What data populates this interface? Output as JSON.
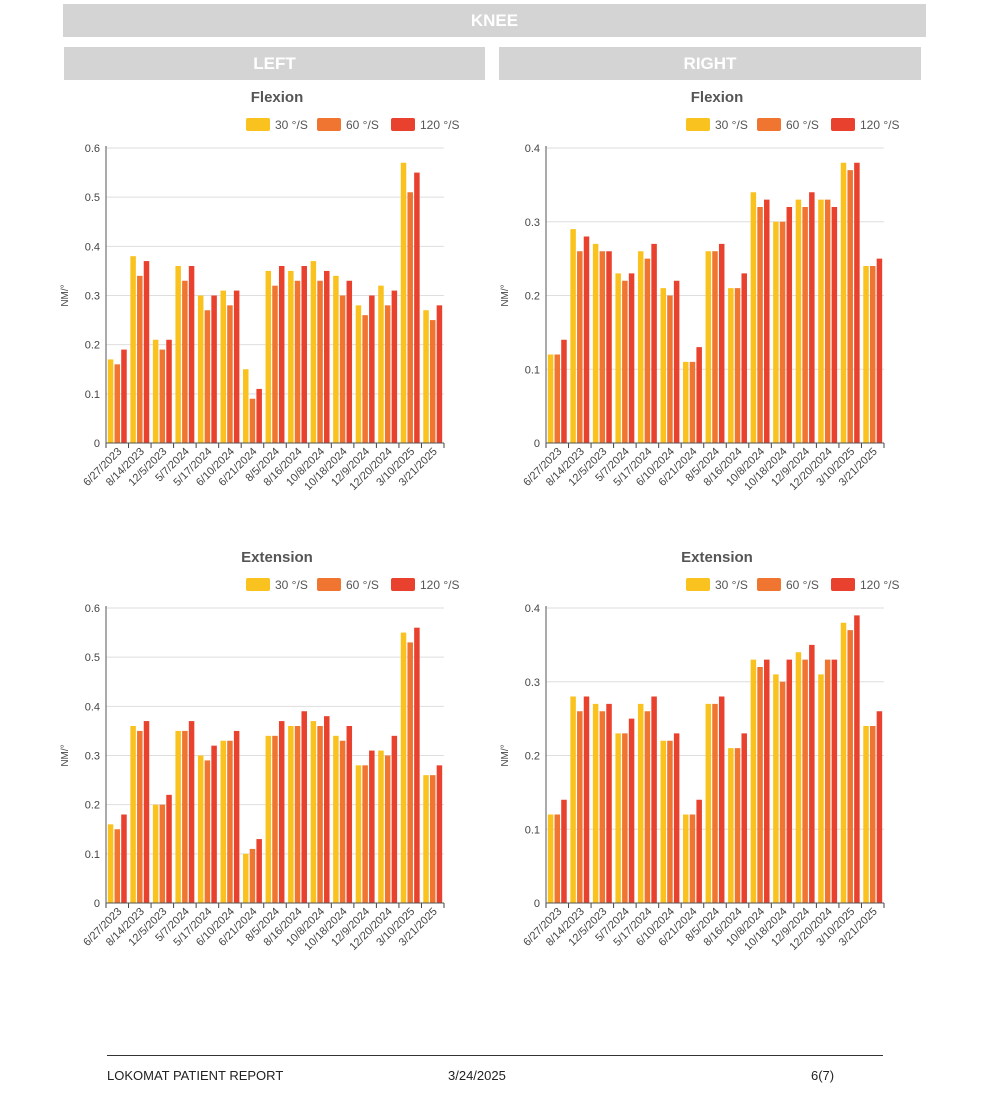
{
  "header": {
    "title": "KNEE",
    "left_label": "LEFT",
    "right_label": "RIGHT"
  },
  "legend_labels": [
    "30 °/S",
    "60 °/S",
    "120 °/S"
  ],
  "series_colors": [
    "#f9c21f",
    "#ef7530",
    "#e8412e"
  ],
  "chart_data": [
    {
      "type": "bar",
      "title": "Flexion",
      "ylabel": "NM/°",
      "ylim": [
        0,
        0.6
      ],
      "yticks": [
        "0",
        "0.1",
        "0.2",
        "0.3",
        "0.4",
        "0.5",
        "0.6"
      ],
      "categories": [
        "6/27/2023",
        "8/14/2023",
        "12/5/2023",
        "5/7/2024",
        "5/17/2024",
        "6/10/2024",
        "6/21/2024",
        "8/5/2024",
        "8/16/2024",
        "10/8/2024",
        "10/18/2024",
        "12/9/2024",
        "12/20/2024",
        "3/10/2025",
        "3/21/2025"
      ],
      "series": [
        {
          "name": "30 °/S",
          "values": [
            0.17,
            0.38,
            0.21,
            0.36,
            0.3,
            0.31,
            0.15,
            0.35,
            0.35,
            0.37,
            0.34,
            0.28,
            0.32,
            0.57,
            0.27
          ]
        },
        {
          "name": "60 °/S",
          "values": [
            0.16,
            0.34,
            0.19,
            0.33,
            0.27,
            0.28,
            0.09,
            0.32,
            0.33,
            0.33,
            0.3,
            0.26,
            0.28,
            0.51,
            0.25
          ]
        },
        {
          "name": "120 °/S",
          "values": [
            0.19,
            0.37,
            0.21,
            0.36,
            0.3,
            0.31,
            0.11,
            0.36,
            0.36,
            0.35,
            0.33,
            0.3,
            0.31,
            0.55,
            0.28
          ]
        }
      ]
    },
    {
      "type": "bar",
      "title": "Flexion",
      "ylabel": "NM/°",
      "ylim": [
        0,
        0.4
      ],
      "yticks": [
        "0",
        "0.1",
        "0.2",
        "0.3",
        "0.4"
      ],
      "categories": [
        "6/27/2023",
        "8/14/2023",
        "12/5/2023",
        "5/7/2024",
        "5/17/2024",
        "6/10/2024",
        "6/21/2024",
        "8/5/2024",
        "8/16/2024",
        "10/8/2024",
        "10/18/2024",
        "12/9/2024",
        "12/20/2024",
        "3/10/2025",
        "3/21/2025"
      ],
      "series": [
        {
          "name": "30 °/S",
          "values": [
            0.12,
            0.29,
            0.27,
            0.23,
            0.26,
            0.21,
            0.11,
            0.26,
            0.21,
            0.34,
            0.3,
            0.33,
            0.33,
            0.38,
            0.24
          ]
        },
        {
          "name": "60 °/S",
          "values": [
            0.12,
            0.26,
            0.26,
            0.22,
            0.25,
            0.2,
            0.11,
            0.26,
            0.21,
            0.32,
            0.3,
            0.32,
            0.33,
            0.37,
            0.24
          ]
        },
        {
          "name": "120 °/S",
          "values": [
            0.14,
            0.28,
            0.26,
            0.23,
            0.27,
            0.22,
            0.13,
            0.27,
            0.23,
            0.33,
            0.32,
            0.34,
            0.32,
            0.38,
            0.25
          ]
        }
      ]
    },
    {
      "type": "bar",
      "title": "Extension",
      "ylabel": "NM/°",
      "ylim": [
        0,
        0.6
      ],
      "yticks": [
        "0",
        "0.1",
        "0.2",
        "0.3",
        "0.4",
        "0.5",
        "0.6"
      ],
      "categories": [
        "6/27/2023",
        "8/14/2023",
        "12/5/2023",
        "5/7/2024",
        "5/17/2024",
        "6/10/2024",
        "6/21/2024",
        "8/5/2024",
        "8/16/2024",
        "10/8/2024",
        "10/18/2024",
        "12/9/2024",
        "12/20/2024",
        "3/10/2025",
        "3/21/2025"
      ],
      "series": [
        {
          "name": "30 °/S",
          "values": [
            0.16,
            0.36,
            0.2,
            0.35,
            0.3,
            0.33,
            0.1,
            0.34,
            0.36,
            0.37,
            0.34,
            0.28,
            0.31,
            0.55,
            0.26
          ]
        },
        {
          "name": "60 °/S",
          "values": [
            0.15,
            0.35,
            0.2,
            0.35,
            0.29,
            0.33,
            0.11,
            0.34,
            0.36,
            0.36,
            0.33,
            0.28,
            0.3,
            0.53,
            0.26
          ]
        },
        {
          "name": "120 °/S",
          "values": [
            0.18,
            0.37,
            0.22,
            0.37,
            0.32,
            0.35,
            0.13,
            0.37,
            0.39,
            0.38,
            0.36,
            0.31,
            0.34,
            0.56,
            0.28
          ]
        }
      ]
    },
    {
      "type": "bar",
      "title": "Extension",
      "ylabel": "NM/°",
      "ylim": [
        0,
        0.4
      ],
      "yticks": [
        "0",
        "0.1",
        "0.2",
        "0.3",
        "0.4"
      ],
      "categories": [
        "6/27/2023",
        "8/14/2023",
        "12/5/2023",
        "5/7/2024",
        "5/17/2024",
        "6/10/2024",
        "6/21/2024",
        "8/5/2024",
        "8/16/2024",
        "10/8/2024",
        "10/18/2024",
        "12/9/2024",
        "12/20/2024",
        "3/10/2025",
        "3/21/2025"
      ],
      "series": [
        {
          "name": "30 °/S",
          "values": [
            0.12,
            0.28,
            0.27,
            0.23,
            0.27,
            0.22,
            0.12,
            0.27,
            0.21,
            0.33,
            0.31,
            0.34,
            0.31,
            0.38,
            0.24
          ]
        },
        {
          "name": "60 °/S",
          "values": [
            0.12,
            0.26,
            0.26,
            0.23,
            0.26,
            0.22,
            0.12,
            0.27,
            0.21,
            0.32,
            0.3,
            0.33,
            0.33,
            0.37,
            0.24
          ]
        },
        {
          "name": "120 °/S",
          "values": [
            0.14,
            0.28,
            0.27,
            0.25,
            0.28,
            0.23,
            0.14,
            0.28,
            0.23,
            0.33,
            0.33,
            0.35,
            0.33,
            0.39,
            0.26
          ]
        }
      ]
    }
  ],
  "footer": {
    "title": "LOKOMAT PATIENT REPORT",
    "date": "3/24/2025",
    "page": "6(7)"
  }
}
